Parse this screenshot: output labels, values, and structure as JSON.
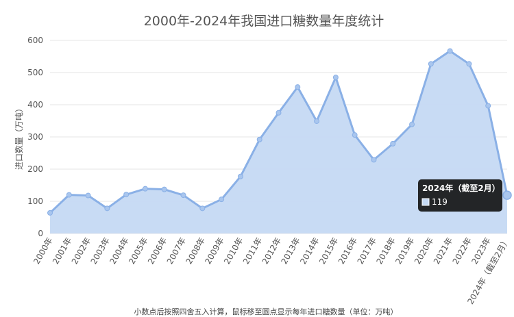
{
  "chart_data": {
    "type": "area",
    "title": "2000年-2024年我国进口糖数量年度统计",
    "ylabel": "进口数量（万吨）",
    "xlabel": "",
    "ylim": [
      0,
      600
    ],
    "yticks": [
      0,
      100,
      200,
      300,
      400,
      500,
      600
    ],
    "grid": true,
    "legend": "none",
    "footnote": "小数点后按照四舍五入计算，鼠标移至圆点显示每年进口糖数量（单位：万吨）",
    "categories": [
      "2000年",
      "2001年",
      "2002年",
      "2003年",
      "2004年",
      "2005年",
      "2006年",
      "2007年",
      "2008年",
      "2009年",
      "2010年",
      "2011年",
      "2012年",
      "2013年",
      "2014年",
      "2015年",
      "2016年",
      "2017年",
      "2018年",
      "2019年",
      "2020年",
      "2021年",
      "2022年",
      "2023年",
      "2024年（截至2月）"
    ],
    "series": [
      {
        "values": [
          64,
          120,
          118,
          78,
          121,
          139,
          137,
          119,
          78,
          106,
          177,
          292,
          375,
          455,
          349,
          485,
          306,
          229,
          279,
          339,
          527,
          567,
          527,
          397,
          119
        ]
      }
    ],
    "tooltip": {
      "title": "2024年（截至2月）",
      "value": "119"
    },
    "colors": {
      "line": "#8ab0e6",
      "fill": "#c5d9f3",
      "point": "#a9c6ee",
      "grid": "#e6e6e6",
      "axis_text": "#555555",
      "tooltip_bg": "#111111"
    }
  }
}
